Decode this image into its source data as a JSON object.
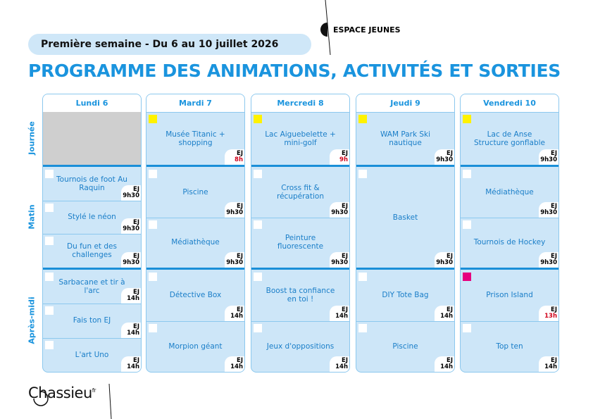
{
  "header": {
    "week": "Première semaine - Du 6 au 10 juillet 2026",
    "brand": "ESPACE JEUNES",
    "title": "PROGRAMME DES ANIMATIONS, ACTIVITÉS ET SORTIES"
  },
  "periods": [
    "Journée",
    "Matin",
    "Après-midi"
  ],
  "days": [
    {
      "name": "Lundi 6",
      "slots": [
        [],
        [
          {
            "label": "Tournois de foot Au Raquin",
            "place": "EJ",
            "time": "9h30"
          },
          {
            "label": "Stylé le néon",
            "place": "EJ",
            "time": "9h30"
          },
          {
            "label": "Du fun et des challenges",
            "place": "EJ",
            "time": "9h30"
          }
        ],
        [
          {
            "label": "Sarbacane et tir à l'arc",
            "place": "EJ",
            "time": "14h"
          },
          {
            "label": "Fais ton EJ",
            "place": "EJ",
            "time": "14h"
          },
          {
            "label": "L'art Uno",
            "place": "EJ",
            "time": "14h"
          }
        ]
      ]
    },
    {
      "name": "Mardi 7",
      "slots": [
        [
          {
            "label": "Musée Titanic + shopping",
            "place": "EJ",
            "time": "8h",
            "time_color": "#d0021b",
            "marker": "#fff200"
          }
        ],
        [
          {
            "label": "Piscine",
            "place": "EJ",
            "time": "9h30"
          },
          {
            "label": "Médiathèque",
            "place": "EJ",
            "time": "9h30"
          }
        ],
        [
          {
            "label": "Détective Box",
            "place": "EJ",
            "time": "14h"
          },
          {
            "label": "Morpion géant",
            "place": "EJ",
            "time": "14h"
          }
        ]
      ]
    },
    {
      "name": "Mercredi 8",
      "slots": [
        [
          {
            "label": "Lac Aiguebelette + mini-golf",
            "place": "EJ",
            "time": "9h",
            "time_color": "#d0021b",
            "marker": "#fff200"
          }
        ],
        [
          {
            "label": "Cross fit & récupération",
            "place": "EJ",
            "time": "9h30"
          },
          {
            "label": "Peinture fluorescente",
            "place": "EJ",
            "time": "9h30"
          }
        ],
        [
          {
            "label": "Boost ta confiance en toi !",
            "place": "EJ",
            "time": "14h"
          },
          {
            "label": "Jeux d'oppositions",
            "place": "EJ",
            "time": "14h"
          }
        ]
      ]
    },
    {
      "name": "Jeudi 9",
      "slots": [
        [
          {
            "label": "WAM Park Ski nautique",
            "place": "EJ",
            "time": "9h30",
            "marker": "#fff200"
          }
        ],
        [
          {
            "label": "Basket",
            "place": "EJ",
            "time": "9h30"
          }
        ],
        [
          {
            "label": "DIY Tote Bag",
            "place": "EJ",
            "time": "14h"
          },
          {
            "label": "Piscine",
            "place": "EJ",
            "time": "14h"
          }
        ]
      ]
    },
    {
      "name": "Vendredi 10",
      "slots": [
        [
          {
            "label": "Lac de Anse Structure gonflable",
            "place": "EJ",
            "time": "9h30",
            "marker": "#fff200"
          }
        ],
        [
          {
            "label": "Médiathèque",
            "place": "EJ",
            "time": "9h30"
          },
          {
            "label": "Tournois de Hockey",
            "place": "EJ",
            "time": "9h30"
          }
        ],
        [
          {
            "label": "Prison Island",
            "place": "EJ",
            "time": "13h",
            "time_color": "#d0021b",
            "marker": "#e6007e"
          },
          {
            "label": "Top ten",
            "place": "EJ",
            "time": "14h"
          }
        ]
      ]
    }
  ],
  "footer": {
    "logo": "Chassieu",
    "suffix": "fr"
  }
}
